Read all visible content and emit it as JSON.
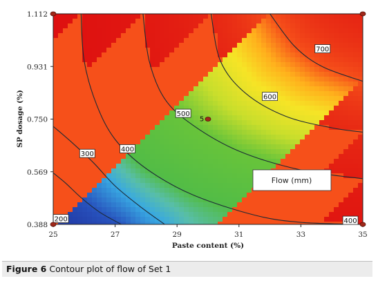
{
  "figure_caption": {
    "label": "Figure 6",
    "text": "Contour plot of flow of Set 1"
  },
  "chart_data": {
    "type": "heatmap",
    "title": "",
    "xlabel": "Paste content (%)",
    "ylabel": "SP dosage (%)",
    "xlim": [
      25,
      35
    ],
    "ylim": [
      0.388,
      1.112
    ],
    "x_ticks": [
      25,
      27,
      29,
      31,
      33,
      35
    ],
    "x_tick_labels": [
      "25",
      "27",
      "29",
      "31",
      "33",
      "35"
    ],
    "y_ticks": [
      0.388,
      0.569,
      0.75,
      0.931,
      1.112
    ],
    "y_tick_labels": [
      "0.388",
      "0.569",
      "0.750",
      "0.931",
      "1.112"
    ],
    "legend": {
      "text": "Flow (mm)",
      "placement": "right"
    },
    "colormap": [
      "#1e2f9c",
      "#2f6fd0",
      "#3bb6e8",
      "#52be45",
      "#7ec83a",
      "#ecea2a",
      "#ffb61c",
      "#f43a1c",
      "#dd1010"
    ],
    "contours": [
      {
        "level": 200,
        "label": "200",
        "points": [
          [
            25.0,
            0.565
          ],
          [
            25.4,
            0.53
          ],
          [
            25.9,
            0.48
          ],
          [
            26.5,
            0.43
          ],
          [
            27.2,
            0.388
          ]
        ]
      },
      {
        "level": 300,
        "label": "300",
        "points": [
          [
            25.0,
            0.725
          ],
          [
            25.6,
            0.67
          ],
          [
            26.3,
            0.6
          ],
          [
            27.0,
            0.52
          ],
          [
            27.8,
            0.45
          ],
          [
            28.6,
            0.388
          ]
        ]
      },
      {
        "level": 400,
        "label": "400",
        "points": [
          [
            25.9,
            1.112
          ],
          [
            26.0,
            0.95
          ],
          [
            26.4,
            0.8
          ],
          [
            27.0,
            0.68
          ],
          [
            28.0,
            0.58
          ],
          [
            29.5,
            0.49
          ],
          [
            31.5,
            0.42
          ],
          [
            33.0,
            0.395
          ],
          [
            35.0,
            0.388
          ]
        ]
      },
      {
        "level": 500,
        "label": "500",
        "points": [
          [
            27.9,
            1.112
          ],
          [
            28.1,
            0.95
          ],
          [
            28.6,
            0.82
          ],
          [
            29.5,
            0.73
          ],
          [
            31.0,
            0.64
          ],
          [
            33.0,
            0.575
          ],
          [
            35.0,
            0.545
          ]
        ]
      },
      {
        "level": 600,
        "label": "600",
        "points": [
          [
            30.1,
            1.112
          ],
          [
            30.4,
            0.95
          ],
          [
            31.2,
            0.84
          ],
          [
            32.5,
            0.76
          ],
          [
            34.0,
            0.72
          ],
          [
            35.0,
            0.705
          ]
        ]
      },
      {
        "level": 700,
        "label": "700",
        "points": [
          [
            32.0,
            1.112
          ],
          [
            32.8,
            1.0
          ],
          [
            33.7,
            0.93
          ],
          [
            35.0,
            0.88
          ]
        ]
      }
    ],
    "contour_labels": [
      {
        "text": "200",
        "x": 25.25,
        "y": 0.408
      },
      {
        "text": "300",
        "x": 26.1,
        "y": 0.632
      },
      {
        "text": "400",
        "x": 27.4,
        "y": 0.648
      },
      {
        "text": "500",
        "x": 29.2,
        "y": 0.77
      },
      {
        "text": "600",
        "x": 32.0,
        "y": 0.828
      },
      {
        "text": "700",
        "x": 33.7,
        "y": 0.992
      },
      {
        "text": "400",
        "x": 34.6,
        "y": 0.402
      }
    ],
    "design_points": [
      {
        "x": 25,
        "y": 1.112,
        "label": ""
      },
      {
        "x": 35,
        "y": 1.112,
        "label": ""
      },
      {
        "x": 25,
        "y": 0.388,
        "label": ""
      },
      {
        "x": 35,
        "y": 0.388,
        "label": ""
      },
      {
        "x": 30,
        "y": 0.75,
        "label": "5"
      }
    ]
  }
}
